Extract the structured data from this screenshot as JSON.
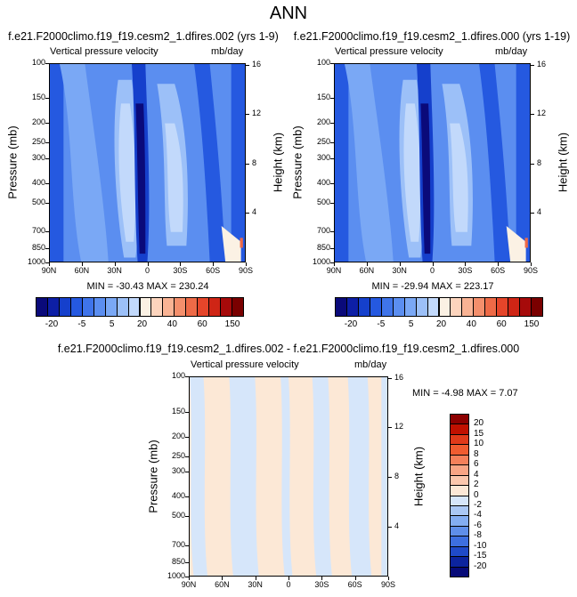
{
  "title": "ANN",
  "panels": [
    {
      "title": "f.e21.F2000climo.f19_f19.cesm2_1.dfires.002 (yrs 1-9)",
      "left_label": "Vertical pressure velocity",
      "right_label": "mb/day",
      "stats": "MIN = -30.43  MAX = 230.24"
    },
    {
      "title": "f.e21.F2000climo.f19_f19.cesm2_1.dfires.000 (yrs 1-19)",
      "left_label": "Vertical pressure velocity",
      "right_label": "mb/day",
      "stats": "MIN = -29.94  MAX = 223.17"
    },
    {
      "title": "f.e21.F2000climo.f19_f19.cesm2_1.dfires.002 - f.e21.F2000climo.f19_f19.cesm2_1.dfires.000",
      "left_label": "Vertical pressure velocity",
      "right_label": "mb/day",
      "stats": "MIN = -4.98  MAX =  7.07"
    }
  ],
  "axes": {
    "ylabel": "Pressure (mb)",
    "y2label": "Height (km)",
    "pressure_ticks": [
      "100",
      "150",
      "200",
      "250",
      "300",
      "400",
      "500",
      "700",
      "850",
      "1000"
    ],
    "height_ticks": [
      "16",
      "12",
      "8",
      "4"
    ],
    "lat_ticks": [
      "90N",
      "60N",
      "30N",
      "0",
      "30S",
      "60S",
      "90S"
    ]
  },
  "colorbars": {
    "main": {
      "labels": [
        "-20",
        "-5",
        "5",
        "20",
        "40",
        "60",
        "150"
      ],
      "colors": [
        "#0a0a7a",
        "#0d1fa6",
        "#1540cc",
        "#2559e0",
        "#3f74ea",
        "#5b8ef0",
        "#7aa8f5",
        "#9cc0f8",
        "#c2d9fb",
        "#fbf1e4",
        "#fcd4bd",
        "#f9b394",
        "#f48f6c",
        "#ee6a47",
        "#e5452a",
        "#cf2515",
        "#a60a0a",
        "#7a0000"
      ]
    },
    "diff": {
      "labels": [
        "20",
        "15",
        "10",
        "8",
        "6",
        "4",
        "2",
        "0",
        "-2",
        "-4",
        "-6",
        "-8",
        "-10",
        "-15",
        "-20"
      ],
      "colors": [
        "#8c0000",
        "#c01000",
        "#e03a1a",
        "#f05c30",
        "#f5805a",
        "#f9a585",
        "#fbc7ad",
        "#fce8d6",
        "#d6e6fa",
        "#aac8f5",
        "#84aef2",
        "#5f8fea",
        "#3d6fe0",
        "#1f4ac8",
        "#0c249e",
        "#070a78"
      ]
    }
  },
  "chart_data": [
    {
      "type": "heatmap",
      "title": "f.e21.F2000climo.f19_f19.cesm2_1.dfires.002 (yrs 1-9)",
      "xlabel": "",
      "ylabel": "Pressure (mb)",
      "x": [
        "90N",
        "60N",
        "30N",
        "0",
        "30S",
        "60S",
        "90S"
      ],
      "y": [
        100,
        150,
        200,
        250,
        300,
        400,
        500,
        700,
        850,
        1000
      ],
      "ylim": [
        1000,
        100
      ],
      "value_range": [
        -30.43,
        230.24
      ],
      "y_scale": "log"
    },
    {
      "type": "heatmap",
      "title": "f.e21.F2000climo.f19_f19.cesm2_1.dfires.000 (yrs 1-19)",
      "xlabel": "",
      "ylabel": "Pressure (mb)",
      "x": [
        "90N",
        "60N",
        "30N",
        "0",
        "30S",
        "60S",
        "90S"
      ],
      "y": [
        100,
        150,
        200,
        250,
        300,
        400,
        500,
        700,
        850,
        1000
      ],
      "ylim": [
        1000,
        100
      ],
      "value_range": [
        -29.94,
        223.17
      ],
      "y_scale": "log"
    },
    {
      "type": "heatmap",
      "title": "f.e21.F2000climo.f19_f19.cesm2_1.dfires.002 - f.e21.F2000climo.f19_f19.cesm2_1.dfires.000",
      "xlabel": "",
      "ylabel": "Pressure (mb)",
      "x": [
        "90N",
        "60N",
        "30N",
        "0",
        "30S",
        "60S",
        "90S"
      ],
      "y": [
        100,
        150,
        200,
        250,
        300,
        400,
        500,
        700,
        850,
        1000
      ],
      "ylim": [
        1000,
        100
      ],
      "value_range": [
        -4.98,
        7.07
      ],
      "y_scale": "log"
    }
  ]
}
